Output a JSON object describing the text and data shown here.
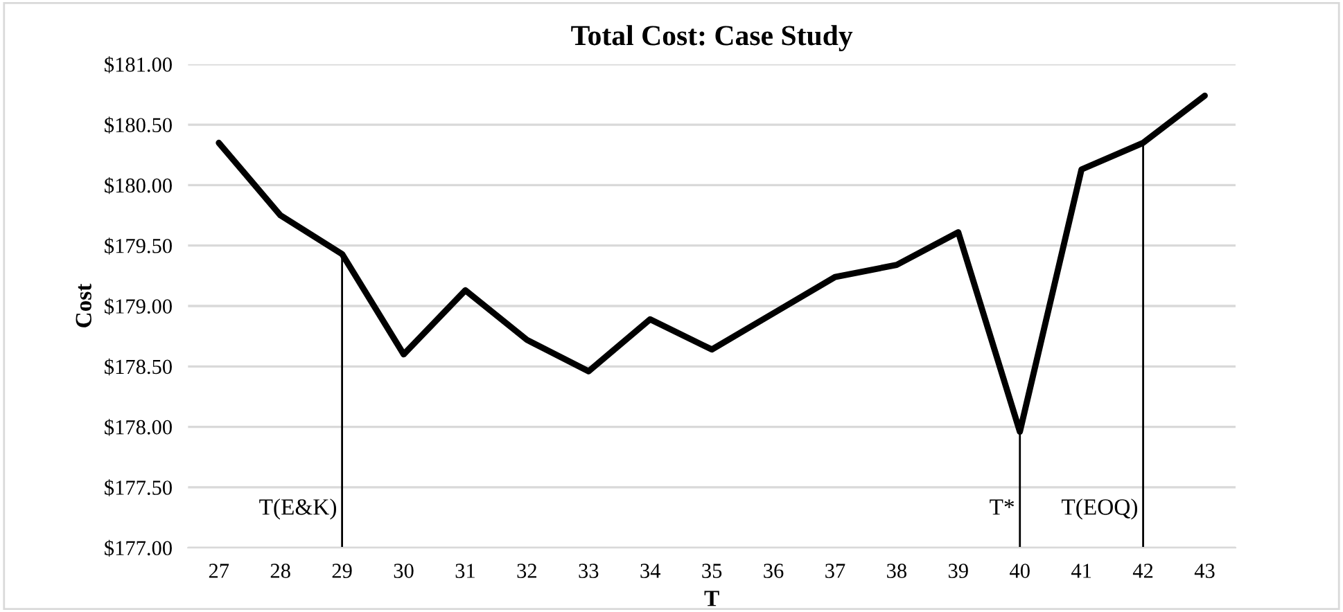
{
  "chart_data": {
    "type": "line",
    "title": "Total Cost: Case Study",
    "xlabel": "T",
    "ylabel": "Cost",
    "categories": [
      "27",
      "28",
      "29",
      "30",
      "31",
      "32",
      "33",
      "34",
      "35",
      "36",
      "37",
      "38",
      "39",
      "40",
      "41",
      "42",
      "43"
    ],
    "series": [
      {
        "color": "#000000",
        "values": [
          180.35,
          179.75,
          179.43,
          178.6,
          179.13,
          178.72,
          178.46,
          178.89,
          178.64,
          178.94,
          179.24,
          179.34,
          179.61,
          177.96,
          180.13,
          180.35,
          180.74
        ]
      }
    ],
    "ylim": [
      177,
      181
    ],
    "yticks": [
      {
        "value": 177,
        "label": "$177.00"
      },
      {
        "value": 177.5,
        "label": "$177.50"
      },
      {
        "value": 178,
        "label": "$178.00"
      },
      {
        "value": 178.5,
        "label": "$178.50"
      },
      {
        "value": 179,
        "label": "$179.00"
      },
      {
        "value": 179.5,
        "label": "$179.50"
      },
      {
        "value": 180,
        "label": "$180.00"
      },
      {
        "value": 180.5,
        "label": "$180.50"
      },
      {
        "value": 181,
        "label": "$181.00"
      }
    ],
    "ref_lines": [
      {
        "axis": "x",
        "value": "29",
        "label": "T(E&K)",
        "color": "#000000"
      },
      {
        "axis": "x",
        "value": "40",
        "label": "T*",
        "color": "#000000"
      },
      {
        "axis": "x",
        "value": "42",
        "label": "T(EOQ)",
        "color": "#000000"
      }
    ],
    "grid": "y",
    "legend": false,
    "marker": "none",
    "line_style": "solid"
  }
}
